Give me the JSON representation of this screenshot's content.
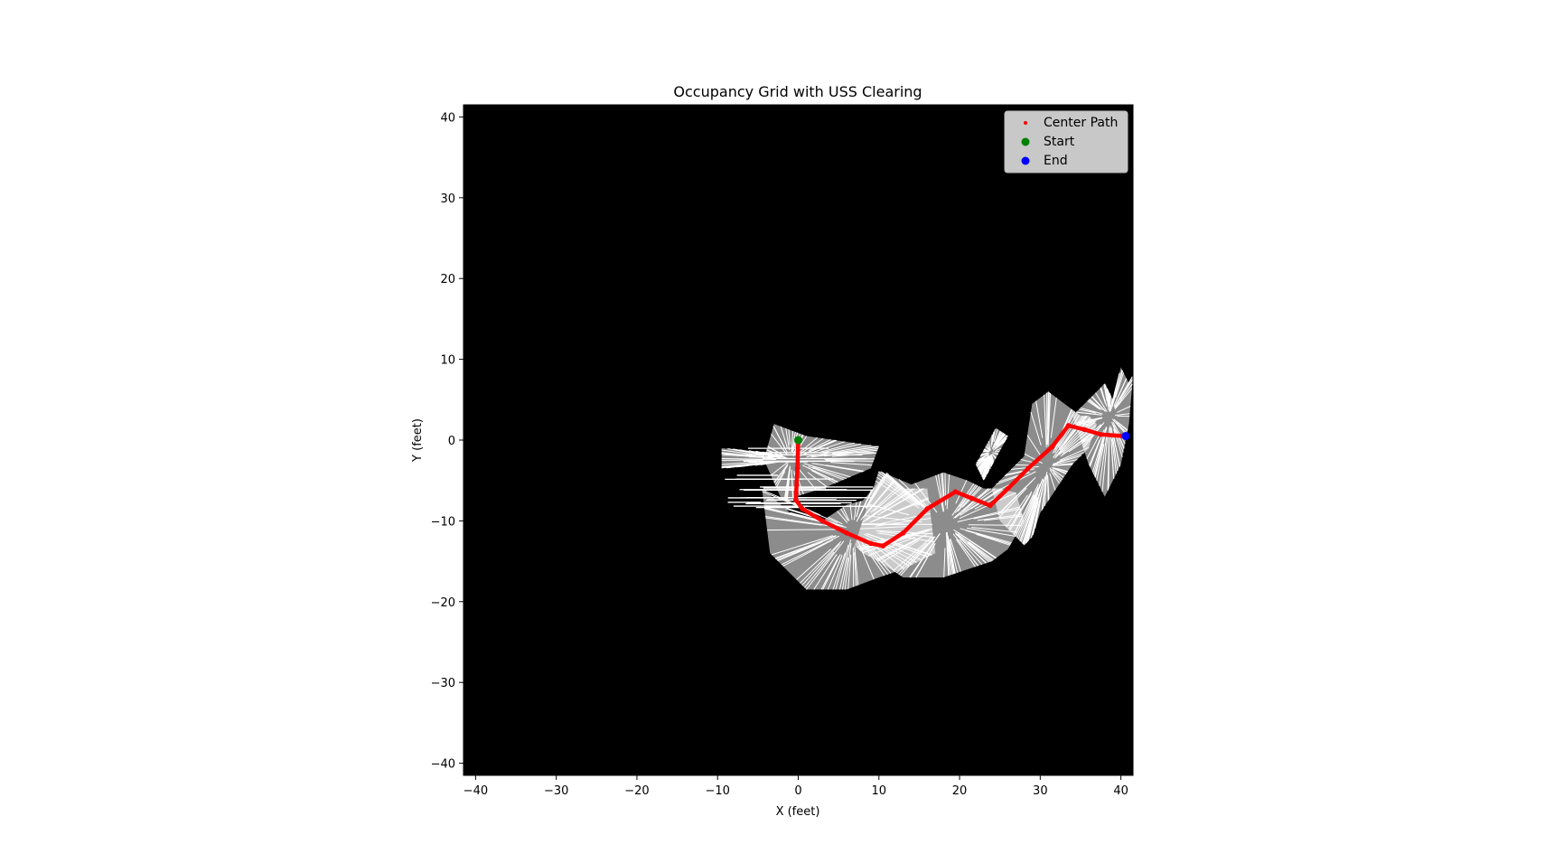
{
  "chart_data": {
    "type": "scatter",
    "title": "Occupancy Grid with USS Clearing",
    "xlabel": "X (feet)",
    "ylabel": "Y (feet)",
    "xlim": [
      -41.5,
      41.5
    ],
    "ylim": [
      -41.5,
      41.5
    ],
    "xticks": [
      -40,
      -30,
      -20,
      -10,
      0,
      10,
      20,
      30,
      40
    ],
    "yticks": [
      -40,
      -30,
      -20,
      -10,
      0,
      10,
      20,
      30,
      40
    ],
    "grid": false,
    "background": "#000000",
    "free_space_color": "#ffffff",
    "legend": {
      "placement": "top-right",
      "entries": [
        {
          "label": "Center Path",
          "color": "#ff0000",
          "marker": "small-dot"
        },
        {
          "label": "Start",
          "color": "#008000",
          "marker": "dot"
        },
        {
          "label": "End",
          "color": "#0000ff",
          "marker": "dot"
        }
      ]
    },
    "series": [
      {
        "name": "Center Path",
        "color": "#ff0000",
        "x": [
          0.0,
          -0.1,
          -0.3,
          0.5,
          3,
          6,
          9,
          10.5,
          13,
          16,
          19.5,
          21.5,
          23.8,
          26,
          28.5,
          31.5,
          33.5,
          35.5,
          37.5,
          40.2
        ],
        "y": [
          0.0,
          -3.5,
          -7.4,
          -8.5,
          -10,
          -11.5,
          -12.8,
          -13.1,
          -11.5,
          -8.5,
          -6.4,
          -7.2,
          -8.1,
          -6,
          -3.5,
          -0.8,
          1.8,
          1.3,
          0.7,
          0.5
        ]
      },
      {
        "name": "Start",
        "color": "#008000",
        "x": [
          0.0
        ],
        "y": [
          0.0
        ]
      },
      {
        "name": "End",
        "color": "#0000ff",
        "x": [
          40.6
        ],
        "y": [
          0.5
        ]
      }
    ],
    "free_regions": [
      {
        "x": [
          -9.5,
          -4,
          -3,
          1,
          10,
          9,
          3,
          -2,
          -4,
          -9.5
        ],
        "y": [
          -1,
          -1.5,
          2,
          0.5,
          -0.8,
          -3.5,
          -6,
          -7.5,
          -3,
          -3.5
        ]
      },
      {
        "x": [
          -4.5,
          -1,
          3,
          6,
          8,
          11,
          13,
          16,
          17,
          13,
          10,
          6,
          1,
          -3.5
        ],
        "y": [
          -6,
          -9,
          -10,
          -8,
          -7.5,
          -4,
          -6,
          -6,
          -14,
          -16,
          -17,
          -18.5,
          -18.5,
          -14
        ]
      },
      {
        "x": [
          7,
          10,
          14,
          18,
          21,
          23,
          25,
          27,
          28,
          26,
          24,
          21,
          18,
          13,
          10,
          8
        ],
        "y": [
          -13,
          -3.8,
          -5.5,
          -4,
          -5,
          -6,
          -6,
          -6.5,
          -10,
          -13.5,
          -15,
          -16,
          -17,
          -17,
          -15,
          -14
        ]
      },
      {
        "x": [
          22,
          24.5,
          26,
          23
        ],
        "y": [
          -3,
          1.5,
          0.5,
          -5
        ]
      },
      {
        "x": [
          24,
          28,
          29,
          31,
          33,
          35,
          36,
          37,
          36,
          34,
          32,
          30,
          29,
          28,
          27,
          25
        ],
        "y": [
          -6,
          -2,
          4.5,
          6,
          4.5,
          3,
          3,
          2,
          -1,
          -3,
          -6,
          -9,
          -12,
          -13,
          -12,
          -10
        ]
      },
      {
        "x": [
          34,
          36,
          38,
          39,
          40,
          41,
          41.5,
          41,
          40,
          38,
          36
        ],
        "y": [
          3,
          5,
          7,
          5,
          9,
          7,
          8,
          2,
          -3,
          -7,
          -3
        ]
      }
    ]
  }
}
